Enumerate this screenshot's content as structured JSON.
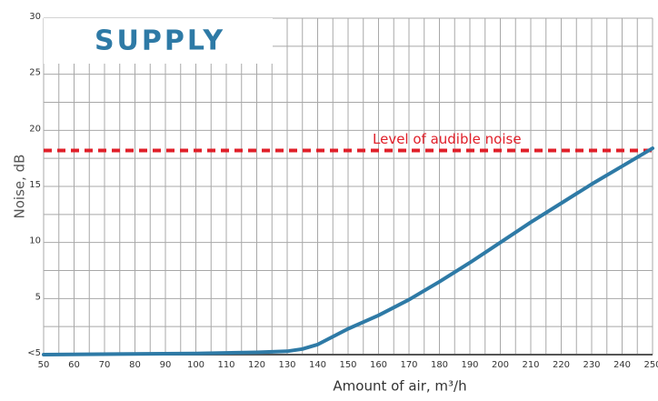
{
  "chart_data": {
    "type": "line",
    "title": "SUPPLY",
    "xlabel": "Amount of air, m³/h",
    "ylabel": "Noise, dB",
    "x": [
      50,
      100,
      120,
      130,
      135,
      140,
      150,
      160,
      170,
      180,
      190,
      200,
      210,
      220,
      230,
      240,
      250
    ],
    "series": [
      {
        "name": "Supply",
        "color": "#2e7aa6",
        "values": [
          0,
          0.1,
          0.2,
          0.3,
          0.5,
          0.9,
          2.3,
          3.5,
          4.9,
          6.5,
          8.2,
          10.0,
          11.8,
          13.5,
          15.2,
          16.8,
          18.4
        ]
      }
    ],
    "xlim": [
      50,
      250
    ],
    "xticks": [
      50,
      60,
      70,
      80,
      90,
      100,
      110,
      120,
      130,
      140,
      150,
      160,
      170,
      180,
      190,
      200,
      210,
      220,
      230,
      240,
      250
    ],
    "ylim": [
      0,
      30
    ],
    "yticks": [
      {
        "value": 0,
        "label": "<5"
      },
      5,
      10,
      15,
      20,
      25,
      30
    ],
    "grid": true,
    "reference_line": {
      "value": 18.2,
      "label": "Level of audible noise",
      "color": "#e0202a"
    }
  }
}
